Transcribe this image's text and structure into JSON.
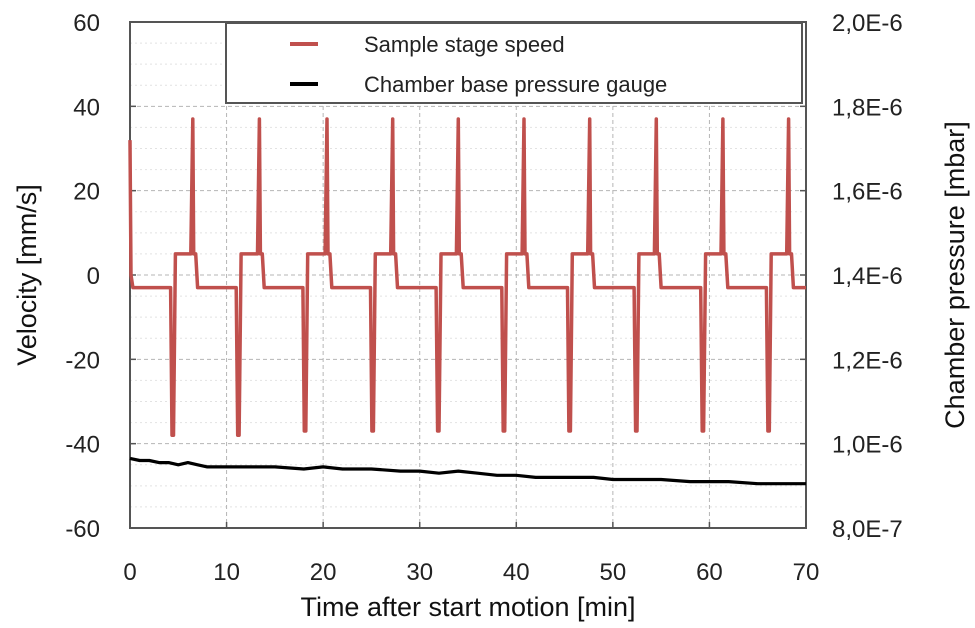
{
  "chart_data": {
    "type": "line",
    "title": "",
    "xlabel": "Time after start motion [min]",
    "ylabel_left": "Velocity [mm/s]",
    "ylabel_right": "Chamber pressure [mbar]",
    "xlim": [
      0,
      70
    ],
    "ylim_left": [
      -60,
      60
    ],
    "ylim_right": [
      8e-07,
      2e-06
    ],
    "x_ticks": [
      "0",
      "10",
      "20",
      "30",
      "40",
      "50",
      "60",
      "70"
    ],
    "y_left_ticks": [
      "-60",
      "-40",
      "-20",
      "0",
      "20",
      "40",
      "60"
    ],
    "y_right_ticks": [
      "8,0E-7",
      "1,0E-6",
      "1,2E-6",
      "1,4E-6",
      "1,6E-6",
      "1,8E-6",
      "2,0E-6"
    ],
    "grid": true,
    "legend_position": "top-right",
    "legend": [
      "Sample stage speed",
      "Chamber base pressure gauge"
    ],
    "series": [
      {
        "name": "Sample stage speed",
        "axis": "left",
        "color": "#c0504d",
        "x": [
          0,
          0.1,
          0.3,
          0.5,
          4.2,
          4.35,
          4.5,
          4.7,
          6.3,
          6.5,
          6.6,
          6.8,
          7.0,
          7.3,
          11.0,
          11.15,
          11.3,
          11.5,
          13.2,
          13.4,
          13.5,
          13.7,
          13.9,
          14.2,
          17.9,
          18.05,
          18.2,
          18.4,
          20.2,
          20.4,
          20.5,
          20.7,
          20.9,
          21.2,
          24.9,
          25.05,
          25.2,
          25.4,
          27.0,
          27.2,
          27.3,
          27.5,
          27.7,
          28.0,
          31.7,
          31.85,
          32.0,
          32.2,
          33.8,
          34.0,
          34.1,
          34.3,
          34.5,
          34.8,
          38.5,
          38.65,
          38.8,
          39.0,
          40.6,
          40.8,
          40.9,
          41.1,
          41.3,
          41.6,
          45.3,
          45.45,
          45.6,
          45.8,
          47.4,
          47.6,
          47.7,
          47.9,
          48.1,
          48.4,
          52.2,
          52.35,
          52.5,
          52.7,
          54.3,
          54.5,
          54.6,
          54.8,
          55.0,
          55.3,
          59.1,
          59.25,
          59.4,
          59.6,
          61.2,
          61.4,
          61.5,
          61.7,
          61.9,
          62.2,
          65.9,
          66.05,
          66.2,
          66.4,
          68.0,
          68.2,
          68.3,
          68.5,
          68.7,
          69.0,
          70.0
        ],
        "values": [
          32,
          0,
          -3,
          -3,
          -3,
          -38,
          -38,
          5,
          5,
          37,
          5,
          5,
          -3,
          -3,
          -3,
          -38,
          -38,
          5,
          5,
          37,
          5,
          5,
          -3,
          -3,
          -3,
          -37,
          -37,
          5,
          5,
          37,
          5,
          5,
          -3,
          -3,
          -3,
          -37,
          -37,
          5,
          5,
          37,
          5,
          5,
          -3,
          -3,
          -3,
          -37,
          -37,
          5,
          5,
          37,
          5,
          5,
          -3,
          -3,
          -3,
          -37,
          -37,
          5,
          5,
          37,
          5,
          5,
          -3,
          -3,
          -3,
          -37,
          -37,
          5,
          5,
          37,
          5,
          5,
          -3,
          -3,
          -3,
          -37,
          -37,
          5,
          5,
          37,
          5,
          5,
          -3,
          -3,
          -3,
          -37,
          -37,
          5,
          5,
          37,
          5,
          5,
          -3,
          -3,
          -3,
          -37,
          -37,
          5,
          5,
          37,
          5,
          5,
          -3,
          -3,
          -3
        ]
      },
      {
        "name": "Chamber base pressure gauge",
        "axis": "right",
        "color": "#000000",
        "x": [
          0,
          1,
          2,
          3,
          4,
          5,
          6,
          7,
          8,
          10,
          12,
          15,
          18,
          20,
          22,
          25,
          28,
          30,
          32,
          34,
          36,
          38,
          40,
          42,
          45,
          48,
          50,
          52,
          55,
          58,
          60,
          62,
          65,
          68,
          70
        ],
        "values": [
          9.65e-07,
          9.6e-07,
          9.6e-07,
          9.55e-07,
          9.55e-07,
          9.5e-07,
          9.55e-07,
          9.5e-07,
          9.45e-07,
          9.45e-07,
          9.45e-07,
          9.45e-07,
          9.4e-07,
          9.45e-07,
          9.4e-07,
          9.4e-07,
          9.35e-07,
          9.35e-07,
          9.3e-07,
          9.35e-07,
          9.3e-07,
          9.25e-07,
          9.25e-07,
          9.2e-07,
          9.2e-07,
          9.2e-07,
          9.15e-07,
          9.15e-07,
          9.15e-07,
          9.1e-07,
          9.1e-07,
          9.1e-07,
          9.05e-07,
          9.05e-07,
          9.05e-07
        ]
      }
    ]
  }
}
